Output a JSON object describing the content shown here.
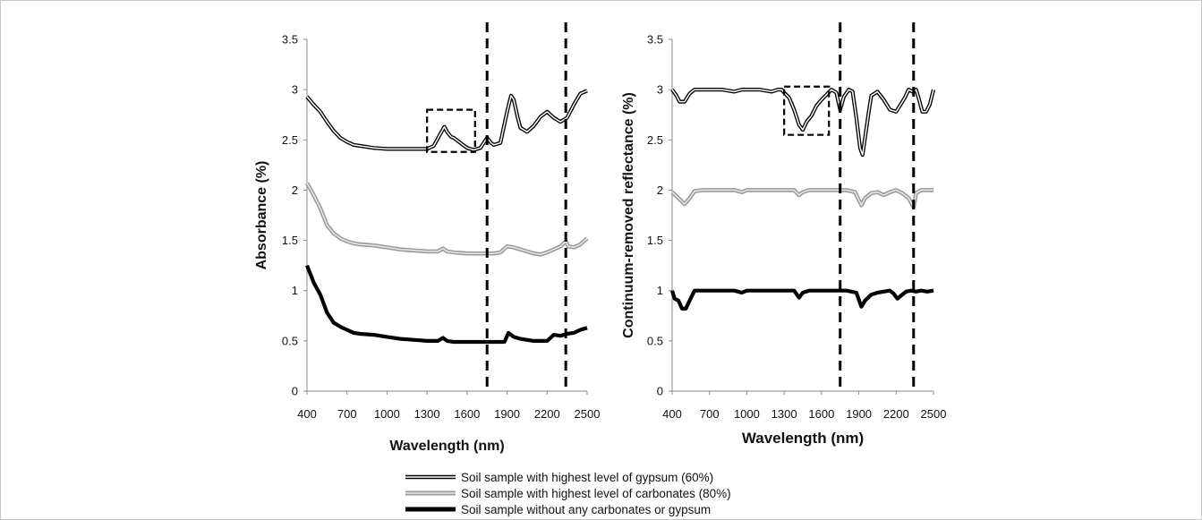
{
  "chart_data": [
    {
      "type": "line",
      "title": "",
      "xlabel": "Wavelength (nm)",
      "ylabel": "Absorbance (%)",
      "xlim": [
        400,
        2500
      ],
      "ylim": [
        0,
        3.5
      ],
      "xticks": [
        "400",
        "700",
        "1000",
        "1300",
        "1600",
        "1900",
        "2200",
        "2500"
      ],
      "yticks": [
        "0",
        "0.5",
        "1",
        "1.5",
        "2",
        "2.5",
        "3",
        "3.5"
      ],
      "grid": false,
      "vlines": [
        1750,
        2340
      ],
      "highlight_box": {
        "x": [
          1300,
          1660
        ],
        "y": [
          2.38,
          2.8
        ]
      },
      "series": [
        {
          "name": "Soil sample with highest level of gypsum (60%)",
          "style": "double-black",
          "x": [
            400,
            450,
            500,
            550,
            600,
            650,
            700,
            750,
            800,
            900,
            1000,
            1100,
            1200,
            1300,
            1350,
            1400,
            1430,
            1450,
            1480,
            1500,
            1550,
            1600,
            1650,
            1700,
            1750,
            1780,
            1800,
            1850,
            1900,
            1930,
            1950,
            1980,
            2000,
            2050,
            2100,
            2150,
            2200,
            2250,
            2300,
            2350,
            2400,
            2450,
            2500
          ],
          "y": [
            2.93,
            2.85,
            2.78,
            2.68,
            2.59,
            2.52,
            2.48,
            2.45,
            2.44,
            2.42,
            2.41,
            2.41,
            2.41,
            2.41,
            2.44,
            2.56,
            2.63,
            2.58,
            2.53,
            2.52,
            2.47,
            2.42,
            2.4,
            2.42,
            2.52,
            2.47,
            2.45,
            2.47,
            2.78,
            2.94,
            2.9,
            2.72,
            2.62,
            2.58,
            2.64,
            2.73,
            2.78,
            2.72,
            2.68,
            2.72,
            2.85,
            2.96,
            2.99
          ]
        },
        {
          "name": "Soil sample with highest level of carbonates (80%)",
          "style": "double-gray",
          "x": [
            400,
            450,
            500,
            550,
            600,
            650,
            700,
            750,
            800,
            900,
            1000,
            1100,
            1200,
            1300,
            1380,
            1420,
            1450,
            1500,
            1600,
            1700,
            1800,
            1850,
            1900,
            1950,
            2000,
            2050,
            2100,
            2150,
            2200,
            2250,
            2300,
            2340,
            2360,
            2400,
            2450,
            2500
          ],
          "y": [
            2.07,
            1.95,
            1.82,
            1.65,
            1.57,
            1.52,
            1.49,
            1.47,
            1.46,
            1.45,
            1.43,
            1.41,
            1.4,
            1.39,
            1.39,
            1.42,
            1.39,
            1.38,
            1.37,
            1.37,
            1.37,
            1.38,
            1.44,
            1.43,
            1.41,
            1.39,
            1.37,
            1.36,
            1.38,
            1.41,
            1.44,
            1.49,
            1.44,
            1.43,
            1.46,
            1.52
          ]
        },
        {
          "name": "Soil sample without any carbonates or gypsum",
          "style": "solid-black",
          "x": [
            400,
            450,
            500,
            550,
            600,
            650,
            700,
            750,
            800,
            900,
            1000,
            1100,
            1200,
            1300,
            1380,
            1420,
            1450,
            1500,
            1600,
            1700,
            1800,
            1880,
            1910,
            1950,
            2000,
            2100,
            2200,
            2250,
            2300,
            2350,
            2400,
            2450,
            2500
          ],
          "y": [
            1.25,
            1.08,
            0.96,
            0.78,
            0.68,
            0.64,
            0.61,
            0.58,
            0.57,
            0.56,
            0.54,
            0.52,
            0.51,
            0.5,
            0.5,
            0.53,
            0.5,
            0.49,
            0.49,
            0.49,
            0.49,
            0.49,
            0.58,
            0.54,
            0.52,
            0.5,
            0.5,
            0.56,
            0.55,
            0.57,
            0.58,
            0.61,
            0.63
          ]
        }
      ]
    },
    {
      "type": "line",
      "title": "",
      "xlabel": "Wavelength (nm)",
      "ylabel": "Continuum-removed reflectance (%)",
      "xlim": [
        400,
        2500
      ],
      "ylim": [
        0,
        3.5
      ],
      "xticks": [
        "400",
        "700",
        "1000",
        "1300",
        "1600",
        "1900",
        "2200",
        "2500"
      ],
      "yticks": [
        "0",
        "0.5",
        "1",
        "1.5",
        "2",
        "2.5",
        "3",
        "3.5"
      ],
      "grid": false,
      "vlines": [
        1750,
        2340
      ],
      "highlight_box": {
        "x": [
          1300,
          1660
        ],
        "y": [
          2.55,
          3.03
        ]
      },
      "series": [
        {
          "name": "Soil sample with highest level of gypsum (60%)",
          "style": "double-black",
          "x": [
            400,
            430,
            460,
            500,
            540,
            580,
            650,
            800,
            900,
            960,
            1000,
            1100,
            1200,
            1250,
            1280,
            1300,
            1340,
            1380,
            1420,
            1450,
            1480,
            1520,
            1560,
            1600,
            1640,
            1680,
            1720,
            1750,
            1780,
            1820,
            1850,
            1880,
            1910,
            1930,
            1950,
            1980,
            2000,
            2050,
            2100,
            2150,
            2200,
            2240,
            2270,
            2300,
            2330,
            2360,
            2380,
            2410,
            2440,
            2470,
            2500
          ],
          "y": [
            3.0,
            2.95,
            2.88,
            2.88,
            2.96,
            3.0,
            3.0,
            3.0,
            2.98,
            3.0,
            3.0,
            3.0,
            2.98,
            3.0,
            3.0,
            2.97,
            2.92,
            2.8,
            2.65,
            2.6,
            2.68,
            2.74,
            2.84,
            2.9,
            2.95,
            3.0,
            2.97,
            2.8,
            2.93,
            3.0,
            2.98,
            2.72,
            2.42,
            2.35,
            2.52,
            2.78,
            2.94,
            2.98,
            2.9,
            2.8,
            2.78,
            2.86,
            2.92,
            3.0,
            2.98,
            3.0,
            2.92,
            2.78,
            2.78,
            2.85,
            3.0
          ]
        },
        {
          "name": "Soil sample with highest level of carbonates (80%)",
          "style": "double-gray",
          "x": [
            400,
            450,
            500,
            540,
            580,
            650,
            800,
            900,
            960,
            1000,
            1100,
            1200,
            1300,
            1380,
            1420,
            1450,
            1500,
            1600,
            1700,
            1800,
            1870,
            1920,
            1950,
            2000,
            2050,
            2100,
            2150,
            2200,
            2250,
            2300,
            2340,
            2360,
            2400,
            2500
          ],
          "y": [
            1.98,
            1.92,
            1.86,
            1.92,
            1.99,
            2.0,
            2.0,
            2.0,
            1.98,
            2.0,
            2.0,
            2.0,
            2.0,
            2.0,
            1.95,
            1.98,
            2.0,
            2.0,
            2.0,
            2.0,
            1.98,
            1.85,
            1.92,
            1.97,
            1.98,
            1.95,
            1.98,
            2.0,
            1.97,
            1.92,
            1.83,
            1.97,
            2.0,
            2.0
          ]
        },
        {
          "name": "Soil sample without any carbonates or gypsum",
          "style": "solid-black",
          "x": [
            400,
            420,
            450,
            480,
            510,
            540,
            580,
            650,
            800,
            900,
            960,
            1000,
            1100,
            1200,
            1300,
            1380,
            1420,
            1450,
            1500,
            1600,
            1700,
            1800,
            1880,
            1920,
            1950,
            2000,
            2050,
            2100,
            2150,
            2180,
            2210,
            2240,
            2280,
            2320,
            2360,
            2400,
            2450,
            2500
          ],
          "y": [
            1.0,
            0.92,
            0.9,
            0.82,
            0.82,
            0.9,
            1.0,
            1.0,
            1.0,
            1.0,
            0.98,
            1.0,
            1.0,
            1.0,
            1.0,
            1.0,
            0.93,
            0.98,
            1.0,
            1.0,
            1.0,
            1.0,
            0.98,
            0.84,
            0.9,
            0.96,
            0.98,
            0.99,
            1.0,
            0.97,
            0.92,
            0.95,
            0.99,
            1.0,
            0.99,
            1.0,
            0.99,
            1.0
          ]
        }
      ]
    }
  ],
  "legend": {
    "items": [
      {
        "label": "Soil sample with highest level of gypsum (60%)",
        "style": "double-black"
      },
      {
        "label": "Soil sample with highest level of carbonates (80%)",
        "style": "double-gray"
      },
      {
        "label": "Soil sample without any carbonates or gypsum",
        "style": "solid-black"
      }
    ]
  },
  "colors": {
    "black": "#000000",
    "gray": "#9a9a9a",
    "white": "#ffffff"
  }
}
